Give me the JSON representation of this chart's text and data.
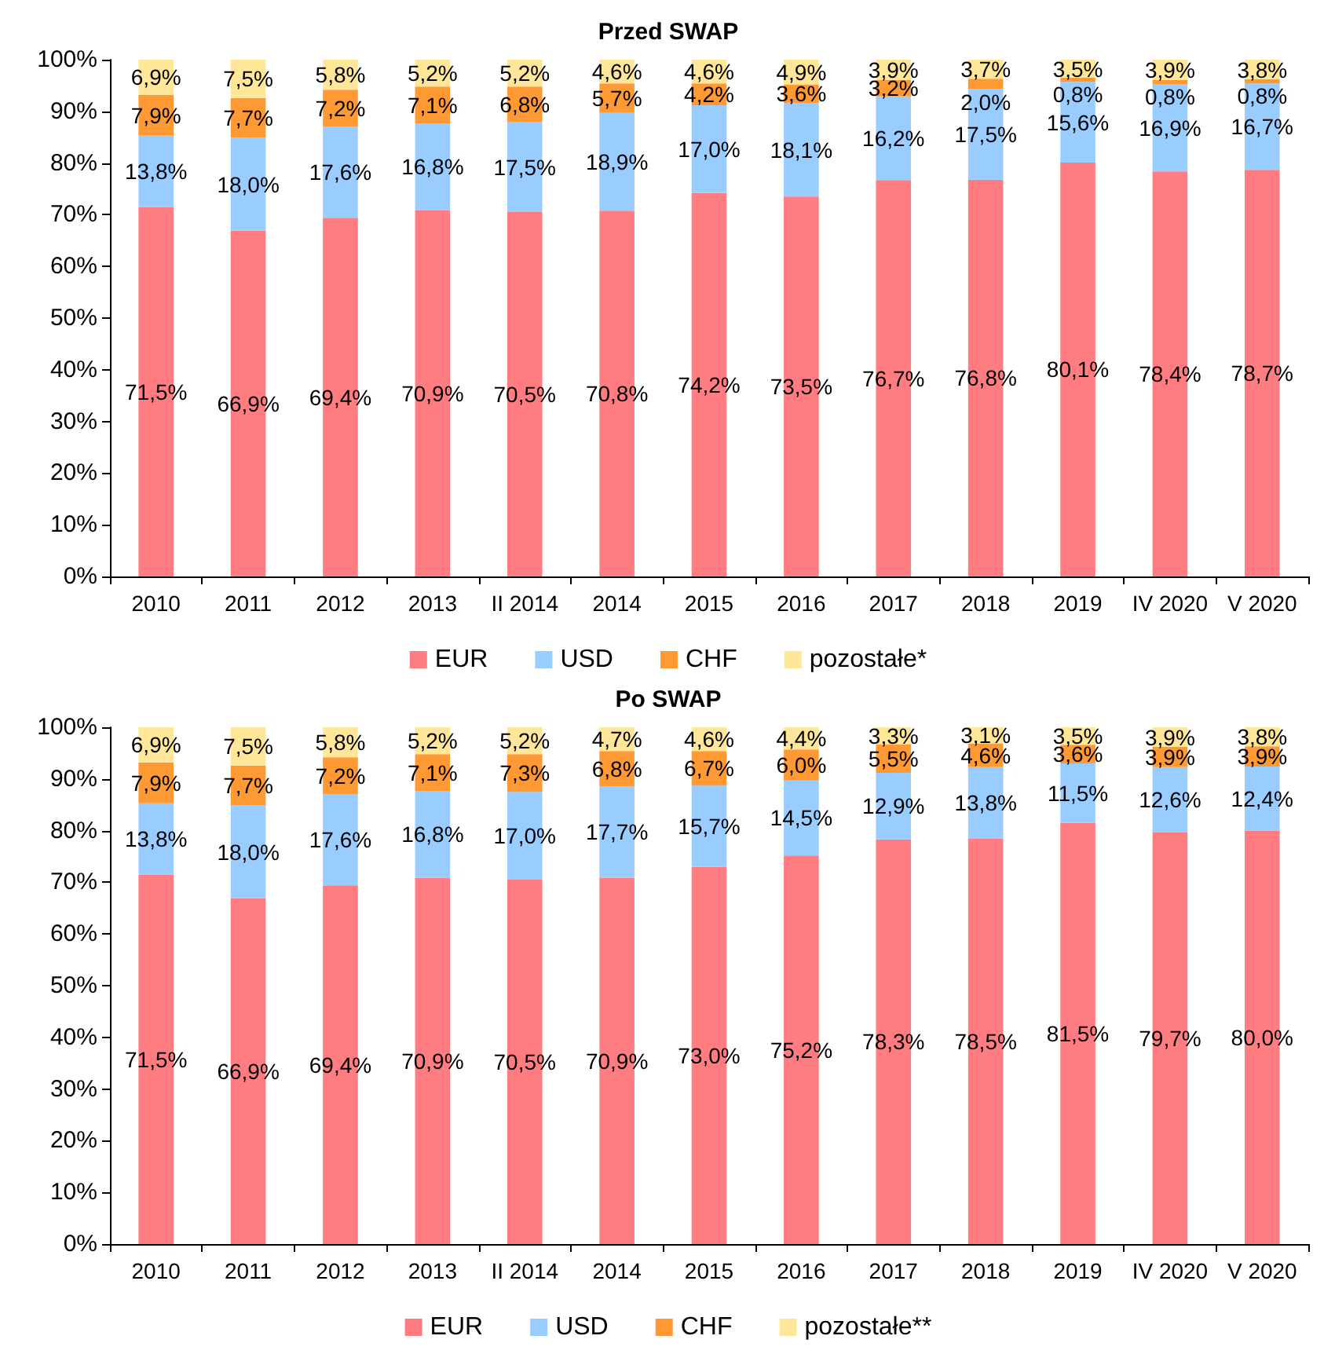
{
  "chart_data": [
    {
      "type": "bar",
      "title": "Przed SWAP",
      "stacked": true,
      "legend": "bottom",
      "grid": false,
      "categories": [
        "2010",
        "2011",
        "2012",
        "2013",
        "II 2014",
        "2014",
        "2015",
        "2016",
        "2017",
        "2018",
        "2019",
        "IV 2020",
        "V 2020"
      ],
      "ylim": [
        0,
        100
      ],
      "yticks": [
        {
          "value": 0,
          "label": "0%"
        },
        {
          "value": 10,
          "label": "10%"
        },
        {
          "value": 20,
          "label": "20%"
        },
        {
          "value": 30,
          "label": "30%"
        },
        {
          "value": 40,
          "label": "40%"
        },
        {
          "value": 50,
          "label": "50%"
        },
        {
          "value": 60,
          "label": "60%"
        },
        {
          "value": 70,
          "label": "70%"
        },
        {
          "value": 80,
          "label": "80%"
        },
        {
          "value": 90,
          "label": "90%"
        },
        {
          "value": 100,
          "label": "100%"
        }
      ],
      "series": [
        {
          "name": "EUR",
          "color": "#ff7c80",
          "values": [
            71.5,
            66.9,
            69.4,
            70.9,
            70.5,
            70.8,
            74.2,
            73.5,
            76.7,
            76.8,
            80.1,
            78.4,
            78.7
          ],
          "value_labels": [
            "71,5%",
            "66,9%",
            "69,4%",
            "70,9%",
            "70,5%",
            "70,8%",
            "74,2%",
            "73,5%",
            "76,7%",
            "76,8%",
            "80,1%",
            "78,4%",
            "78,7%"
          ]
        },
        {
          "name": "USD",
          "color": "#99ccff",
          "values": [
            13.8,
            18.0,
            17.6,
            16.8,
            17.5,
            18.9,
            17.0,
            18.1,
            16.2,
            17.5,
            15.6,
            16.9,
            16.7
          ],
          "value_labels": [
            "13,8%",
            "18,0%",
            "17,6%",
            "16,8%",
            "17,5%",
            "18,9%",
            "17,0%",
            "18,1%",
            "16,2%",
            "17,5%",
            "15,6%",
            "16,9%",
            "16,7%"
          ]
        },
        {
          "name": "CHF",
          "color": "#ff9933",
          "values": [
            7.9,
            7.7,
            7.2,
            7.1,
            6.8,
            5.7,
            4.2,
            3.6,
            3.2,
            2.0,
            0.8,
            0.8,
            0.8
          ],
          "value_labels": [
            "7,9%",
            "7,7%",
            "7,2%",
            "7,1%",
            "6,8%",
            "5,7%",
            "4,2%",
            "3,6%",
            "3,2%",
            "2,0%",
            "0,8%",
            "0,8%",
            "0,8%"
          ]
        },
        {
          "name": "pozostałe*",
          "color": "#ffe699",
          "values": [
            6.9,
            7.5,
            5.8,
            5.2,
            5.2,
            4.6,
            4.6,
            4.9,
            3.9,
            3.7,
            3.5,
            3.9,
            3.8
          ],
          "value_labels": [
            "6,9%",
            "7,5%",
            "5,8%",
            "5,2%",
            "5,2%",
            "4,6%",
            "4,6%",
            "4,9%",
            "3,9%",
            "3,7%",
            "3,5%",
            "3,9%",
            "3,8%"
          ]
        }
      ]
    },
    {
      "type": "bar",
      "title": "Po SWAP",
      "stacked": true,
      "legend": "bottom",
      "grid": false,
      "categories": [
        "2010",
        "2011",
        "2012",
        "2013",
        "II 2014",
        "2014",
        "2015",
        "2016",
        "2017",
        "2018",
        "2019",
        "IV 2020",
        "V 2020"
      ],
      "ylim": [
        0,
        100
      ],
      "yticks": [
        {
          "value": 0,
          "label": "0%"
        },
        {
          "value": 10,
          "label": "10%"
        },
        {
          "value": 20,
          "label": "20%"
        },
        {
          "value": 30,
          "label": "30%"
        },
        {
          "value": 40,
          "label": "40%"
        },
        {
          "value": 50,
          "label": "50%"
        },
        {
          "value": 60,
          "label": "60%"
        },
        {
          "value": 70,
          "label": "70%"
        },
        {
          "value": 80,
          "label": "80%"
        },
        {
          "value": 90,
          "label": "90%"
        },
        {
          "value": 100,
          "label": "100%"
        }
      ],
      "series": [
        {
          "name": "EUR",
          "color": "#ff7c80",
          "values": [
            71.5,
            66.9,
            69.4,
            70.9,
            70.5,
            70.9,
            73.0,
            75.2,
            78.3,
            78.5,
            81.5,
            79.7,
            80.0
          ],
          "value_labels": [
            "71,5%",
            "66,9%",
            "69,4%",
            "70,9%",
            "70,5%",
            "70,9%",
            "73,0%",
            "75,2%",
            "78,3%",
            "78,5%",
            "81,5%",
            "79,7%",
            "80,0%"
          ]
        },
        {
          "name": "USD",
          "color": "#99ccff",
          "values": [
            13.8,
            18.0,
            17.6,
            16.8,
            17.0,
            17.7,
            15.7,
            14.5,
            12.9,
            13.8,
            11.5,
            12.6,
            12.4
          ],
          "value_labels": [
            "13,8%",
            "18,0%",
            "17,6%",
            "16,8%",
            "17,0%",
            "17,7%",
            "15,7%",
            "14,5%",
            "12,9%",
            "13,8%",
            "11,5%",
            "12,6%",
            "12,4%"
          ]
        },
        {
          "name": "CHF",
          "color": "#ff9933",
          "values": [
            7.9,
            7.7,
            7.2,
            7.1,
            7.3,
            6.8,
            6.7,
            6.0,
            5.5,
            4.6,
            3.6,
            3.9,
            3.9
          ],
          "value_labels": [
            "7,9%",
            "7,7%",
            "7,2%",
            "7,1%",
            "7,3%",
            "6,8%",
            "6,7%",
            "6,0%",
            "5,5%",
            "4,6%",
            "3,6%",
            "3,9%",
            "3,9%"
          ]
        },
        {
          "name": "pozostałe**",
          "color": "#ffe699",
          "values": [
            6.9,
            7.5,
            5.8,
            5.2,
            5.2,
            4.7,
            4.6,
            4.4,
            3.3,
            3.1,
            3.5,
            3.9,
            3.8
          ],
          "value_labels": [
            "6,9%",
            "7,5%",
            "5,8%",
            "5,2%",
            "5,2%",
            "4,7%",
            "4,6%",
            "4,4%",
            "3,3%",
            "3,1%",
            "3,5%",
            "3,9%",
            "3,8%"
          ]
        }
      ]
    }
  ]
}
